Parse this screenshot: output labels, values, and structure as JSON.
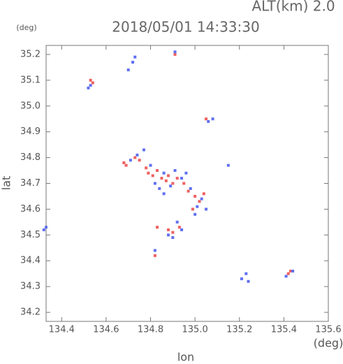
{
  "chart_data": {
    "type": "scatter",
    "title": "2018/05/01 14:33:30",
    "subtitle": "ALT(km) 2.0",
    "y_unit": "(deg)",
    "x_unit": "(deg)",
    "x_label": "lon",
    "y_label": "lat",
    "xlim": [
      134.33,
      135.6
    ],
    "ylim": [
      34.165,
      35.235
    ],
    "xticks": [
      134.4,
      134.6,
      134.8,
      {
        "value": 135.0,
        "label": "135.0"
      },
      135.2,
      135.4,
      135.6
    ],
    "yticks": [
      34.2,
      34.3,
      34.4,
      34.5,
      34.6,
      34.7,
      34.8,
      34.9,
      {
        "value": 35.0,
        "label": "35.0"
      },
      35.1,
      35.2
    ],
    "series": [
      {
        "color": "#f06060",
        "x": [
          134.53,
          134.54,
          134.68,
          134.69,
          134.73,
          134.75,
          134.78,
          134.79,
          134.81,
          134.83,
          134.85,
          134.87,
          134.88,
          134.9,
          134.92,
          134.95,
          134.97,
          135.0,
          135.02,
          135.04,
          134.88,
          134.9,
          134.93,
          134.83,
          134.82,
          135.43,
          135.42,
          134.91,
          135.05,
          134.99
        ],
        "y": [
          35.1,
          35.09,
          34.78,
          34.77,
          34.8,
          34.79,
          34.76,
          34.74,
          34.73,
          34.75,
          34.72,
          34.71,
          34.73,
          34.7,
          34.72,
          34.7,
          34.67,
          34.65,
          34.63,
          34.66,
          34.52,
          34.51,
          34.53,
          34.53,
          34.42,
          34.36,
          34.35,
          35.2,
          34.95,
          34.6
        ]
      },
      {
        "color": "#6070f0",
        "x": [
          134.32,
          134.33,
          134.52,
          134.53,
          134.7,
          134.72,
          134.73,
          134.91,
          135.06,
          135.08,
          134.71,
          134.74,
          134.77,
          134.8,
          134.82,
          134.84,
          134.86,
          134.89,
          134.91,
          134.94,
          134.96,
          134.98,
          135.01,
          135.03,
          135.05,
          134.88,
          134.9,
          134.92,
          134.94,
          134.82,
          135.15,
          135.21,
          135.23,
          135.24,
          135.41,
          135.44,
          135.0,
          134.86
        ],
        "y": [
          34.52,
          34.53,
          35.07,
          35.08,
          35.14,
          35.17,
          35.19,
          35.21,
          34.94,
          34.95,
          34.79,
          34.81,
          34.83,
          34.77,
          34.7,
          34.68,
          34.74,
          34.69,
          34.75,
          34.72,
          34.74,
          34.68,
          34.61,
          34.64,
          34.6,
          34.5,
          34.49,
          34.55,
          34.52,
          34.44,
          34.77,
          34.33,
          34.35,
          34.32,
          34.34,
          34.36,
          34.58,
          34.66
        ]
      }
    ]
  }
}
